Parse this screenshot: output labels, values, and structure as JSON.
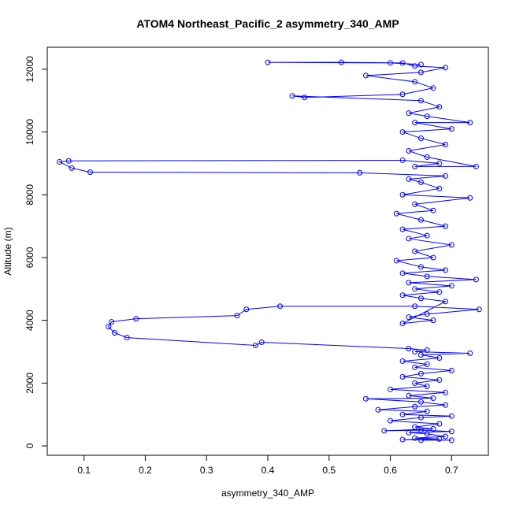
{
  "chart_data": {
    "type": "scatter",
    "title": "ATOM4 Northeast_Pacific_2 asymmetry_340_AMP",
    "xlabel": "asymmetry_340_AMP",
    "ylabel": "Altitude (m)",
    "xlim": [
      0.04,
      0.76
    ],
    "ylim": [
      -300,
      12700
    ],
    "x_ticks": [
      0.1,
      0.2,
      0.3,
      0.4,
      0.5,
      0.6,
      0.7
    ],
    "y_ticks": [
      0,
      2000,
      4000,
      6000,
      8000,
      10000,
      12000
    ],
    "grid": false,
    "legend": "none",
    "marker": "open-circle",
    "connect_points": true,
    "series": [
      {
        "color": "#0000ff",
        "points": [
          [
            0.65,
            180
          ],
          [
            0.7,
            180
          ],
          [
            0.62,
            200
          ],
          [
            0.68,
            220
          ],
          [
            0.64,
            250
          ],
          [
            0.69,
            300
          ],
          [
            0.66,
            380
          ],
          [
            0.63,
            420
          ],
          [
            0.7,
            460
          ],
          [
            0.65,
            500
          ],
          [
            0.59,
            480
          ],
          [
            0.67,
            540
          ],
          [
            0.64,
            600
          ],
          [
            0.68,
            700
          ],
          [
            0.6,
            800
          ],
          [
            0.65,
            900
          ],
          [
            0.7,
            950
          ],
          [
            0.62,
            1000
          ],
          [
            0.66,
            1100
          ],
          [
            0.58,
            1150
          ],
          [
            0.64,
            1250
          ],
          [
            0.69,
            1300
          ],
          [
            0.65,
            1400
          ],
          [
            0.56,
            1500
          ],
          [
            0.67,
            1520
          ],
          [
            0.63,
            1600
          ],
          [
            0.69,
            1700
          ],
          [
            0.6,
            1800
          ],
          [
            0.66,
            1900
          ],
          [
            0.64,
            2000
          ],
          [
            0.68,
            2100
          ],
          [
            0.62,
            2200
          ],
          [
            0.65,
            2300
          ],
          [
            0.7,
            2400
          ],
          [
            0.64,
            2500
          ],
          [
            0.66,
            2600
          ],
          [
            0.62,
            2700
          ],
          [
            0.68,
            2800
          ],
          [
            0.65,
            2900
          ],
          [
            0.73,
            2950
          ],
          [
            0.64,
            3000
          ],
          [
            0.66,
            3050
          ],
          [
            0.63,
            3100
          ],
          [
            0.39,
            3300
          ],
          [
            0.38,
            3200
          ],
          [
            0.17,
            3450
          ],
          [
            0.15,
            3600
          ],
          [
            0.14,
            3800
          ],
          [
            0.145,
            3950
          ],
          [
            0.185,
            4050
          ],
          [
            0.35,
            4150
          ],
          [
            0.365,
            4350
          ],
          [
            0.42,
            4450
          ],
          [
            0.64,
            4450
          ],
          [
            0.745,
            4350
          ],
          [
            0.66,
            4200
          ],
          [
            0.63,
            4100
          ],
          [
            0.67,
            4000
          ],
          [
            0.62,
            3900
          ],
          [
            0.69,
            4600
          ],
          [
            0.65,
            4700
          ],
          [
            0.62,
            4800
          ],
          [
            0.68,
            4900
          ],
          [
            0.64,
            5000
          ],
          [
            0.7,
            5100
          ],
          [
            0.63,
            5200
          ],
          [
            0.74,
            5300
          ],
          [
            0.66,
            5400
          ],
          [
            0.62,
            5500
          ],
          [
            0.69,
            5600
          ],
          [
            0.65,
            5700
          ],
          [
            0.61,
            5900
          ],
          [
            0.67,
            6000
          ],
          [
            0.64,
            6200
          ],
          [
            0.7,
            6400
          ],
          [
            0.63,
            6600
          ],
          [
            0.66,
            6700
          ],
          [
            0.62,
            6900
          ],
          [
            0.69,
            7000
          ],
          [
            0.65,
            7200
          ],
          [
            0.61,
            7400
          ],
          [
            0.67,
            7500
          ],
          [
            0.64,
            7700
          ],
          [
            0.73,
            7900
          ],
          [
            0.62,
            8000
          ],
          [
            0.68,
            8200
          ],
          [
            0.65,
            8400
          ],
          [
            0.63,
            8500
          ],
          [
            0.69,
            8600
          ],
          [
            0.55,
            8700
          ],
          [
            0.11,
            8720
          ],
          [
            0.08,
            8850
          ],
          [
            0.06,
            9050
          ],
          [
            0.075,
            9080
          ],
          [
            0.62,
            9100
          ],
          [
            0.68,
            9000
          ],
          [
            0.64,
            8900
          ],
          [
            0.74,
            8900
          ],
          [
            0.66,
            9200
          ],
          [
            0.63,
            9400
          ],
          [
            0.69,
            9600
          ],
          [
            0.65,
            9800
          ],
          [
            0.62,
            10000
          ],
          [
            0.7,
            10100
          ],
          [
            0.64,
            10300
          ],
          [
            0.73,
            10300
          ],
          [
            0.66,
            10500
          ],
          [
            0.63,
            10600
          ],
          [
            0.68,
            10800
          ],
          [
            0.65,
            11000
          ],
          [
            0.44,
            11150
          ],
          [
            0.46,
            11100
          ],
          [
            0.62,
            11200
          ],
          [
            0.67,
            11400
          ],
          [
            0.64,
            11600
          ],
          [
            0.56,
            11800
          ],
          [
            0.65,
            11900
          ],
          [
            0.69,
            12050
          ],
          [
            0.64,
            12100
          ],
          [
            0.62,
            12200
          ],
          [
            0.52,
            12220
          ],
          [
            0.4,
            12220
          ],
          [
            0.6,
            12200
          ],
          [
            0.65,
            12150
          ]
        ]
      }
    ]
  }
}
